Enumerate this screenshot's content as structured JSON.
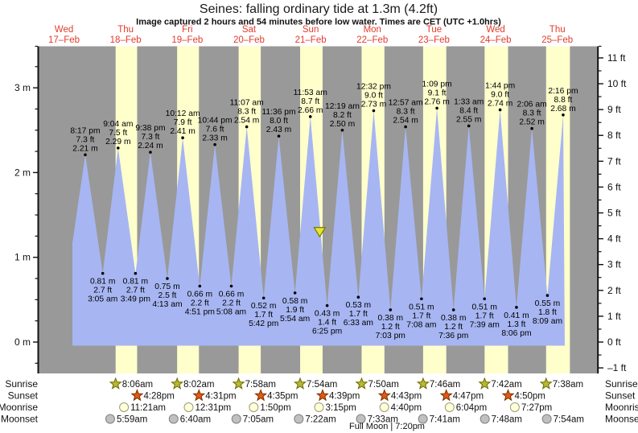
{
  "title": "Seines: falling  ordinary tide at 1.3m (4.2ft)",
  "subtitle": "Image captured 2 hours and 54 minutes before low water. Times are CET (UTC +1.0hrs)",
  "chart_data": {
    "type": "area",
    "title": "Seines: falling  ordinary tide at 1.3m (4.2ft)",
    "days": [
      {
        "weekday": "Wed",
        "date": "17–Feb"
      },
      {
        "weekday": "Thu",
        "date": "18–Feb"
      },
      {
        "weekday": "Fri",
        "date": "19–Feb"
      },
      {
        "weekday": "Sat",
        "date": "20–Feb"
      },
      {
        "weekday": "Sun",
        "date": "21–Feb"
      },
      {
        "weekday": "Mon",
        "date": "22–Feb"
      },
      {
        "weekday": "Tue",
        "date": "23–Feb"
      },
      {
        "weekday": "Wed",
        "date": "24–Feb"
      },
      {
        "weekday": "Thu",
        "date": "25–Feb"
      }
    ],
    "y_axis_left": {
      "unit": "m",
      "ticks": [
        "3 m",
        "2 m",
        "1 m",
        "0 m"
      ]
    },
    "y_axis_right": {
      "unit": "ft",
      "ticks": [
        "11 ft",
        "10 ft",
        "9 ft",
        "8 ft",
        "7 ft",
        "6 ft",
        "5 ft",
        "4 ft",
        "3 ft",
        "2 ft",
        "1 ft",
        "0 ft",
        "–1 ft"
      ]
    },
    "tide_extremes": [
      {
        "type": "high",
        "day": 0,
        "time": "8:17 pm",
        "ft": "7.3 ft",
        "m": "2.21 m"
      },
      {
        "type": "low",
        "day": 1,
        "time": "3:05 am",
        "ft": "2.7 ft",
        "m": "0.81 m"
      },
      {
        "type": "high",
        "day": 1,
        "time": "9:04 am",
        "ft": "7.5 ft",
        "m": "2.29 m"
      },
      {
        "type": "low",
        "day": 1,
        "time": "3:49 pm",
        "ft": "2.7 ft",
        "m": "0.81 m"
      },
      {
        "type": "high",
        "day": 1,
        "time": "9:38 pm",
        "ft": "7.3 ft",
        "m": "2.24 m"
      },
      {
        "type": "low",
        "day": 2,
        "time": "4:13 am",
        "ft": "2.5 ft",
        "m": "0.75 m"
      },
      {
        "type": "high",
        "day": 2,
        "time": "10:12 am",
        "ft": "7.9 ft",
        "m": "2.41 m"
      },
      {
        "type": "low",
        "day": 2,
        "time": "4:51 pm",
        "ft": "2.2 ft",
        "m": "0.66 m"
      },
      {
        "type": "high",
        "day": 2,
        "time": "10:44 pm",
        "ft": "7.6 ft",
        "m": "2.33 m"
      },
      {
        "type": "low",
        "day": 3,
        "time": "5:08 am",
        "ft": "2.2 ft",
        "m": "0.66 m"
      },
      {
        "type": "high",
        "day": 3,
        "time": "11:07 am",
        "ft": "8.3 ft",
        "m": "2.54 m"
      },
      {
        "type": "low",
        "day": 3,
        "time": "5:42 pm",
        "ft": "1.7 ft",
        "m": "0.52 m"
      },
      {
        "type": "high",
        "day": 3,
        "time": "11:36 pm",
        "ft": "8.0 ft",
        "m": "2.43 m"
      },
      {
        "type": "low",
        "day": 4,
        "time": "5:54 am",
        "ft": "1.9 ft",
        "m": "0.58 m"
      },
      {
        "type": "high",
        "day": 4,
        "time": "11:53 am",
        "ft": "8.7 ft",
        "m": "2.66 m"
      },
      {
        "type": "low",
        "day": 4,
        "time": "6:25 pm",
        "ft": "1.4 ft",
        "m": "0.43 m"
      },
      {
        "type": "high",
        "day": 5,
        "time": "12:19 am",
        "ft": "8.2 ft",
        "m": "2.50 m"
      },
      {
        "type": "low",
        "day": 5,
        "time": "6:33 am",
        "ft": "1.7 ft",
        "m": "0.53 m"
      },
      {
        "type": "high",
        "day": 5,
        "time": "12:32 pm",
        "ft": "9.0 ft",
        "m": "2.73 m"
      },
      {
        "type": "low",
        "day": 5,
        "time": "7:03 pm",
        "ft": "1.2 ft",
        "m": "0.38 m"
      },
      {
        "type": "high",
        "day": 6,
        "time": "12:57 am",
        "ft": "8.3 ft",
        "m": "2.54 m"
      },
      {
        "type": "low",
        "day": 6,
        "time": "7:08 am",
        "ft": "1.7 ft",
        "m": "0.51 m"
      },
      {
        "type": "high",
        "day": 6,
        "time": "1:09 pm",
        "ft": "9.1 ft",
        "m": "2.76 m"
      },
      {
        "type": "low",
        "day": 6,
        "time": "7:36 pm",
        "ft": "1.2 ft",
        "m": "0.38 m"
      },
      {
        "type": "high",
        "day": 7,
        "time": "1:33 am",
        "ft": "8.4 ft",
        "m": "2.55 m"
      },
      {
        "type": "low",
        "day": 7,
        "time": "7:39 am",
        "ft": "1.7 ft",
        "m": "0.51 m"
      },
      {
        "type": "high",
        "day": 7,
        "time": "1:44 pm",
        "ft": "9.0 ft",
        "m": "2.74 m"
      },
      {
        "type": "low",
        "day": 7,
        "time": "8:06 pm",
        "ft": "1.3 ft",
        "m": "0.41 m"
      },
      {
        "type": "high",
        "day": 8,
        "time": "2:06 am",
        "ft": "8.3 ft",
        "m": "2.52 m"
      },
      {
        "type": "low",
        "day": 8,
        "time": "8:09 am",
        "ft": "1.8 ft",
        "m": "0.55 m"
      },
      {
        "type": "high",
        "day": 8,
        "time": "2:16 pm",
        "ft": "8.8 ft",
        "m": "2.68 m"
      }
    ],
    "current_tide_marker": {
      "day": 4,
      "time": "3:31 pm",
      "height_m": 1.3
    }
  },
  "sun_moon": {
    "row_labels": [
      "Sunrise",
      "Sunset",
      "Moonrise",
      "Moonset"
    ],
    "sunrise": [
      {
        "day": 1,
        "time": "8:06am"
      },
      {
        "day": 2,
        "time": "8:02am"
      },
      {
        "day": 3,
        "time": "7:58am"
      },
      {
        "day": 4,
        "time": "7:54am"
      },
      {
        "day": 5,
        "time": "7:50am"
      },
      {
        "day": 6,
        "time": "7:46am"
      },
      {
        "day": 7,
        "time": "7:42am"
      },
      {
        "day": 8,
        "time": "7:38am"
      }
    ],
    "sunset": [
      {
        "day": 1,
        "time": "4:28pm"
      },
      {
        "day": 2,
        "time": "4:31pm"
      },
      {
        "day": 3,
        "time": "4:35pm"
      },
      {
        "day": 4,
        "time": "4:39pm"
      },
      {
        "day": 5,
        "time": "4:43pm"
      },
      {
        "day": 6,
        "time": "4:47pm"
      },
      {
        "day": 7,
        "time": "4:50pm"
      }
    ],
    "moonrise": [
      {
        "day": 1,
        "time": "11:21am"
      },
      {
        "day": 2,
        "time": "12:31pm"
      },
      {
        "day": 3,
        "time": "1:50pm"
      },
      {
        "day": 4,
        "time": "3:15pm"
      },
      {
        "day": 5,
        "time": "4:40pm"
      },
      {
        "day": 6,
        "time": "6:04pm"
      },
      {
        "day": 7,
        "time": "7:27pm"
      }
    ],
    "moonset": [
      {
        "day": 1,
        "time": "5:59am"
      },
      {
        "day": 2,
        "time": "6:40am"
      },
      {
        "day": 3,
        "time": "7:05am"
      },
      {
        "day": 4,
        "time": "7:22am"
      },
      {
        "day": 5,
        "time": "7:33am"
      },
      {
        "day": 6,
        "time": "7:41am"
      },
      {
        "day": 7,
        "time": "7:48am"
      },
      {
        "day": 8,
        "time": "7:54am"
      }
    ],
    "full_moon": "Full Moon | 7:20pm"
  },
  "colors": {
    "plot_bg": "#999999",
    "daylight_band": "#ffffcc",
    "tide_fill": "#a7b6f2",
    "day_label": "#e23b2e",
    "sunrise_icon": "#b8b832",
    "sunset_icon": "#e05a10",
    "moonrise_icon": "#ffffd8",
    "moonset_icon": "#c0c0c0",
    "marker_fill": "#e6e62e",
    "marker_stroke": "#7a7a00"
  }
}
